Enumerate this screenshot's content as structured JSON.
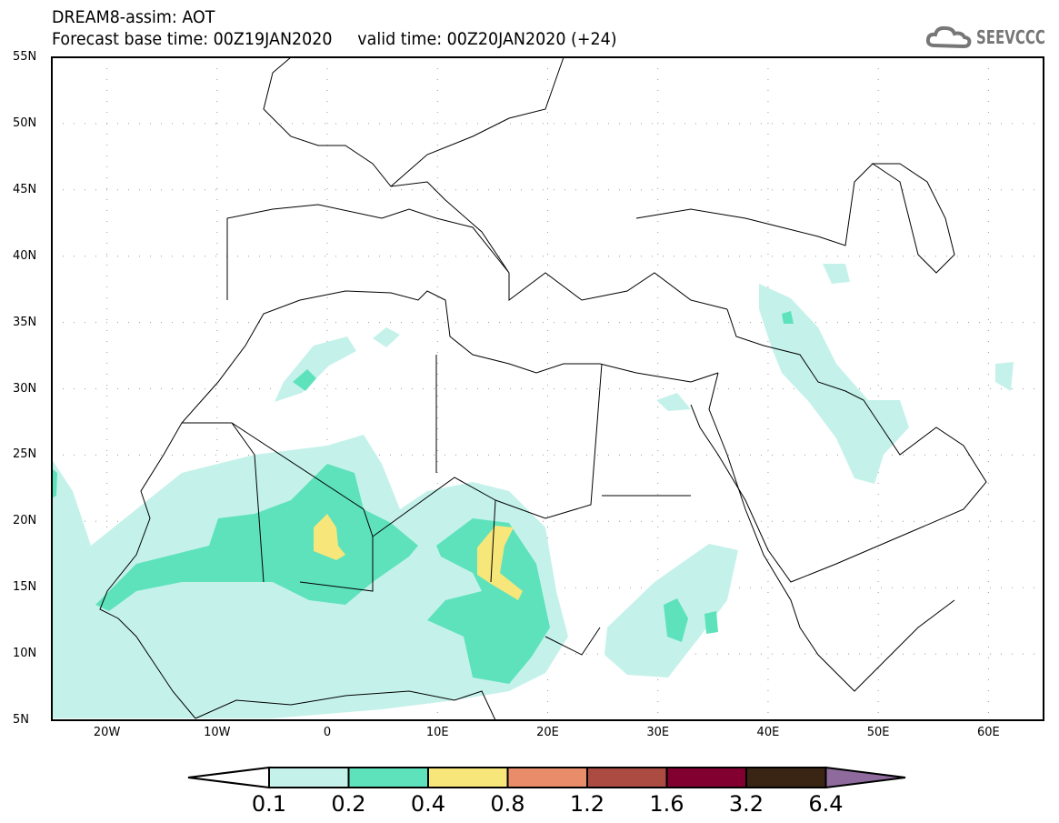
{
  "header": {
    "title": "DREAM8-assim: AOT",
    "subtitle": "Forecast base time: 00Z19JAN2020     valid time: 00Z20JAN2020 (+24)",
    "logo_text": "SEEVCCC"
  },
  "map": {
    "lat_labels": [
      "55N",
      "50N",
      "45N",
      "40N",
      "35N",
      "30N",
      "25N",
      "20N",
      "15N",
      "10N",
      "5N"
    ],
    "lon_labels": [
      "20W",
      "10W",
      "0",
      "10E",
      "20E",
      "30E",
      "40E",
      "50E",
      "60E"
    ],
    "colors": {
      "coast": "#000000",
      "grid": "#9a9a9a"
    }
  },
  "colorbar": {
    "levels": [
      "0.1",
      "0.2",
      "0.4",
      "0.8",
      "1.2",
      "1.6",
      "3.2",
      "6.4"
    ],
    "colors": [
      "#ffffff",
      "#c4f2ea",
      "#5ee2bc",
      "#f7e67a",
      "#e98c6a",
      "#ac4b42",
      "#820030",
      "#3a2414",
      "#8e6b9c"
    ]
  }
}
